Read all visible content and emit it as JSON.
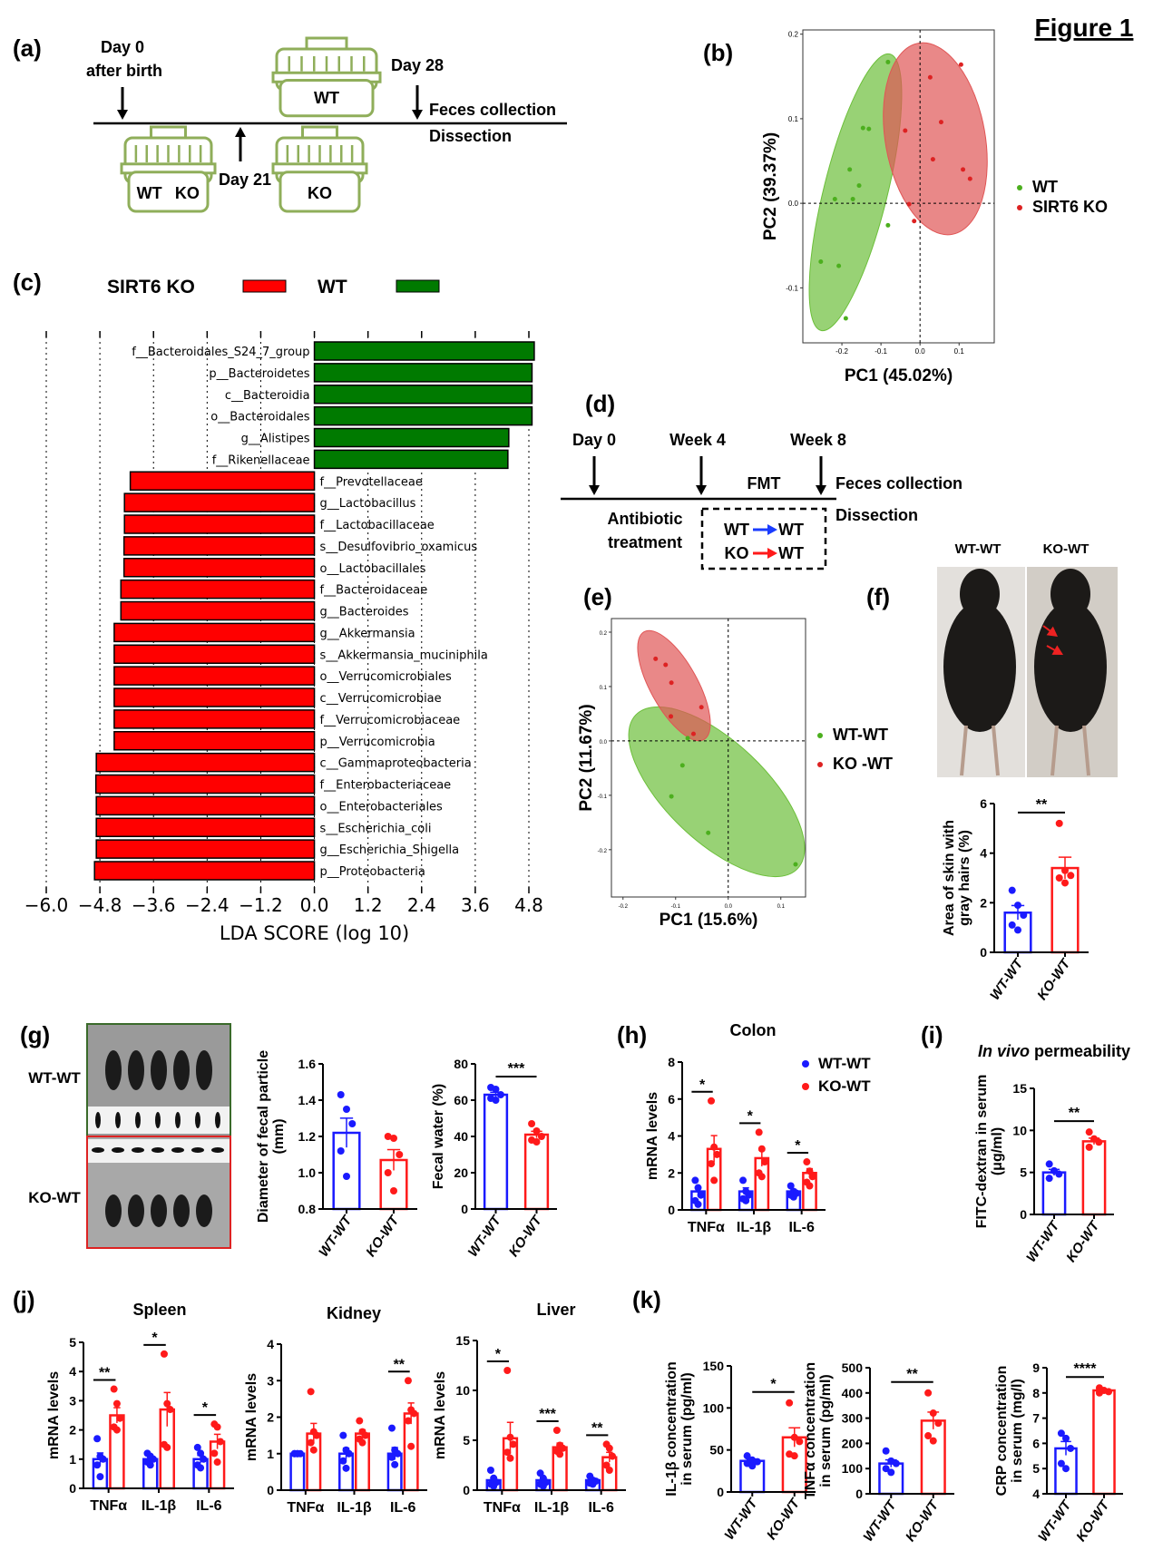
{
  "figure_title": "Figure 1",
  "panels": {
    "a": "(a)",
    "b": "(b)",
    "c": "(c)",
    "d": "(d)",
    "e": "(e)",
    "f": "(f)",
    "g": "(g)",
    "h": "(h)",
    "i": "(i)",
    "j": "(j)",
    "k": "(k)"
  },
  "colors": {
    "wt": "#1a1aff",
    "ko": "#ff1a1a",
    "green_bar": "#007a00",
    "red_bar": "#ff0000",
    "cage": "#8fae5a",
    "pca_green": "#6cbf3a",
    "pca_red": "#e05555"
  },
  "panel_a": {
    "day0": "Day 0",
    "after_birth": "after birth",
    "day21": "Day 21",
    "day28": "Day 28",
    "feces": "Feces collection",
    "dissection": "Dissection",
    "cage_top": "WT",
    "cage_left_1": "WT",
    "cage_left_2": "KO",
    "cage_right": "KO"
  },
  "panel_d": {
    "day0": "Day 0",
    "week4": "Week 4",
    "week8": "Week 8",
    "fmt": "FMT",
    "feces": "Feces collection",
    "dissection": "Dissection",
    "antibiotic": "Antibiotic",
    "treatment": "treatment",
    "transfer": [
      {
        "from": "WT",
        "to": "WT",
        "arrow_color": "#1a3cff"
      },
      {
        "from": "KO",
        "to": "WT",
        "arrow_color": "#ff1a1a"
      }
    ]
  },
  "panel_f": {
    "photo_labels": [
      "WT-WT",
      "KO-WT"
    ]
  },
  "panel_g": {
    "photo_labels": [
      "WT-WT",
      "KO-WT"
    ]
  },
  "lda_legend": {
    "ko": "SIRT6 KO",
    "wt": "WT"
  },
  "chart_data": [
    {
      "id": "b",
      "type": "scatter",
      "xlabel": "PC1 (45.02%)",
      "ylabel": "PC2 (39.37%)",
      "xlim": [
        -0.3,
        0.19
      ],
      "ylim": [
        -0.165,
        0.205
      ],
      "xticks": [
        "-0.2",
        "-0.1",
        "0.0",
        "0.1"
      ],
      "yticks": [
        "-0.1",
        "0.0",
        "0.1",
        "0.2"
      ],
      "legend": "right",
      "ellipses": true,
      "series": [
        {
          "name": "WT",
          "color": "#6cbf3a",
          "points": [
            [
              -0.082,
              0.167
            ],
            [
              -0.146,
              0.089
            ],
            [
              -0.131,
              0.088
            ],
            [
              -0.18,
              0.04
            ],
            [
              -0.156,
              0.021
            ],
            [
              -0.218,
              0.005
            ],
            [
              -0.172,
              0.005
            ],
            [
              -0.254,
              -0.069
            ],
            [
              -0.208,
              -0.074
            ],
            [
              -0.19,
              -0.136
            ],
            [
              -0.082,
              -0.026
            ]
          ]
        },
        {
          "name": "SIRT6 KO",
          "color": "#e05555",
          "points": [
            [
              0.026,
              0.149
            ],
            [
              0.105,
              0.164
            ],
            [
              -0.038,
              0.086
            ],
            [
              0.054,
              0.096
            ],
            [
              0.11,
              0.04
            ],
            [
              0.128,
              0.029
            ],
            [
              0.033,
              0.052
            ],
            [
              -0.028,
              -0.001
            ],
            [
              -0.015,
              -0.021
            ]
          ]
        }
      ]
    },
    {
      "id": "c",
      "type": "bar",
      "orientation": "horizontal",
      "xlabel": "LDA SCORE (log 10)",
      "xlim": [
        -6.0,
        4.8
      ],
      "xticks": [
        "−6.0",
        "−4.8",
        "−3.6",
        "−2.4",
        "−1.2",
        "0.0",
        "1.2",
        "2.4",
        "3.6",
        "4.8"
      ],
      "grid": true,
      "categories": [
        "f__Bacteroidales_S24_7_group",
        "p__Bacteroidetes",
        "c__Bacteroidia",
        "o__Bacteroidales",
        "g__Alistipes",
        "f__Rikenellaceae",
        "f__Prevotellaceae",
        "g__Lactobacillus",
        "f__Lactobacillaceae",
        "s__Desulfovibrio_oxamicus",
        "o__Lactobacillales",
        "f__Bacteroidaceae",
        "g__Bacteroides",
        "g__Akkermansia",
        "s__Akkermansia_muciniphila",
        "o__Verrucomicrobiales",
        "c__Verrucomicrobiae",
        "f__Verrucomicrobiaceae",
        "p__Verrucomicrobia",
        "c__Gammaproteobacteria",
        "f__Enterobacteriaceae",
        "o__Enterobacteriales",
        "s__Escherichia_coli",
        "g__Escherichia_Shigella",
        "p__Proteobacteria"
      ],
      "values": [
        4.92,
        4.87,
        4.87,
        4.87,
        4.35,
        4.33,
        -4.12,
        -4.25,
        -4.25,
        -4.26,
        -4.26,
        -4.33,
        -4.33,
        -4.48,
        -4.48,
        -4.48,
        -4.48,
        -4.48,
        -4.48,
        -4.88,
        -4.89,
        -4.88,
        -4.88,
        -4.88,
        -4.92
      ]
    },
    {
      "id": "e",
      "type": "scatter",
      "xlabel": "PC1 (15.6%)",
      "ylabel": "PC2 (11.67%)",
      "xlim": [
        -0.222,
        0.147
      ],
      "ylim": [
        -0.287,
        0.225
      ],
      "xticks": [
        "-0.2",
        "-0.1",
        "0.0",
        "0.1"
      ],
      "yticks": [
        "-0.2",
        "-0.1",
        "0.0",
        "0.1",
        "0.2"
      ],
      "legend": "right",
      "ellipses": true,
      "series": [
        {
          "name": "WT-WT",
          "color": "#6cbf3a",
          "points": [
            [
              -0.087,
              -0.045
            ],
            [
              -0.108,
              -0.102
            ],
            [
              -0.038,
              -0.169
            ],
            [
              0.128,
              -0.227
            ],
            [
              -0.077,
              0.005
            ]
          ]
        },
        {
          "name": "KO -WT",
          "color": "#e05555",
          "points": [
            [
              -0.138,
              0.151
            ],
            [
              -0.119,
              0.14
            ],
            [
              -0.108,
              0.107
            ],
            [
              -0.051,
              0.062
            ],
            [
              -0.109,
              0.045
            ],
            [
              -0.066,
              0.013
            ]
          ]
        }
      ]
    },
    {
      "id": "f",
      "type": "bar",
      "ylabel": [
        "Area of skin with",
        "gray hairs (%)"
      ],
      "ylim": [
        0,
        6
      ],
      "yticks": [
        "0",
        "2",
        "4",
        "6"
      ],
      "categories": [
        "WT-WT",
        "KO-WT"
      ],
      "colors": [
        "#1a1aff",
        "#ff1a1a"
      ],
      "series": [
        {
          "values": [
            1.6,
            3.4
          ],
          "points": [
            [
              2.5,
              1.9,
              1.5,
              1.1,
              0.9
            ],
            [
              5.2,
              3.3,
              3.1,
              3.0,
              2.8
            ]
          ]
        }
      ],
      "significance": [
        "**"
      ]
    },
    {
      "id": "g1",
      "type": "bar",
      "ylabel": [
        "Diameter of fecal particle",
        "(mm)"
      ],
      "ylim": [
        0.8,
        1.6
      ],
      "yticks": [
        "0.8",
        "1.0",
        "1.2",
        "1.4",
        "1.6"
      ],
      "categories": [
        "WT-WT",
        "KO-WT"
      ],
      "colors": [
        "#1a1aff",
        "#ff1a1a"
      ],
      "series": [
        {
          "values": [
            1.22,
            1.07
          ],
          "points": [
            [
              1.43,
              1.35,
              1.27,
              1.12,
              0.98
            ],
            [
              1.2,
              1.19,
              1.1,
              1.0,
              0.9
            ]
          ]
        }
      ],
      "significance": [
        ""
      ]
    },
    {
      "id": "g2",
      "type": "bar",
      "ylabel": [
        "Fecal water (%)"
      ],
      "ylim": [
        0,
        80
      ],
      "yticks": [
        "0",
        "20",
        "40",
        "60",
        "80"
      ],
      "categories": [
        "WT-WT",
        "KO-WT"
      ],
      "colors": [
        "#1a1aff",
        "#ff1a1a"
      ],
      "series": [
        {
          "values": [
            63,
            41
          ],
          "points": [
            [
              67,
              66,
              63,
              61,
              60
            ],
            [
              47,
              43,
              40,
              38,
              37
            ]
          ]
        }
      ],
      "significance": [
        "***"
      ]
    },
    {
      "id": "h",
      "type": "bar",
      "title": "Colon",
      "ylabel": [
        "mRNA levels"
      ],
      "ylim": [
        0,
        8
      ],
      "yticks": [
        "0",
        "2",
        "4",
        "6",
        "8"
      ],
      "categories": [
        "TNFα",
        "IL-1β",
        "IL-6"
      ],
      "legend": "top-right",
      "series": [
        {
          "name": "WT-WT",
          "color": "#1a1aff",
          "values": [
            1.0,
            1.0,
            1.0
          ],
          "points": [
            [
              1.6,
              1.2,
              0.8,
              0.5,
              0.3
            ],
            [
              1.6,
              1.0,
              0.8,
              0.6,
              0.5
            ],
            [
              1.3,
              1.0,
              0.9,
              0.8,
              0.7
            ]
          ]
        },
        {
          "name": "KO-WT",
          "color": "#ff1a1a",
          "values": [
            3.3,
            2.8,
            2.0
          ],
          "points": [
            [
              5.9,
              3.4,
              3.0,
              2.5,
              1.6
            ],
            [
              4.2,
              3.3,
              2.6,
              2.0,
              1.8
            ],
            [
              2.6,
              2.1,
              1.8,
              1.5,
              1.3
            ]
          ]
        }
      ],
      "significance": [
        "*",
        "*",
        "*"
      ]
    },
    {
      "id": "i",
      "type": "bar",
      "title_italic": "In vivo",
      "title": " permeability",
      "ylabel": [
        "FITC-dextran in serum",
        "(μg/ml)"
      ],
      "ylim": [
        0,
        15
      ],
      "yticks": [
        "0",
        "5",
        "10",
        "15"
      ],
      "categories": [
        "WT-WT",
        "KO-WT"
      ],
      "colors": [
        "#1a1aff",
        "#ff1a1a"
      ],
      "series": [
        {
          "values": [
            5.0,
            8.7
          ],
          "points": [
            [
              6.0,
              5.2,
              4.8,
              4.3
            ],
            [
              9.8,
              9.0,
              8.6,
              8.0
            ]
          ]
        }
      ],
      "significance": [
        "**"
      ]
    },
    {
      "id": "j1",
      "type": "bar",
      "title": "Spleen",
      "ylabel": [
        "mRNA levels"
      ],
      "ylim": [
        0,
        5
      ],
      "yticks": [
        "0",
        "1",
        "2",
        "3",
        "4",
        "5"
      ],
      "categories": [
        "TNFα",
        "IL-1β",
        "IL-6"
      ],
      "series": [
        {
          "color": "#1a1aff",
          "values": [
            1.0,
            1.0,
            1.0
          ],
          "points": [
            [
              1.7,
              1.1,
              1.0,
              0.8,
              0.4
            ],
            [
              1.2,
              1.1,
              1.0,
              0.9,
              0.8
            ],
            [
              1.4,
              1.2,
              1.0,
              0.8,
              0.7
            ]
          ]
        },
        {
          "color": "#ff1a1a",
          "values": [
            2.5,
            2.7,
            1.6
          ],
          "points": [
            [
              3.4,
              2.9,
              2.4,
              2.1,
              2.0
            ],
            [
              4.6,
              2.9,
              2.7,
              1.5,
              1.4
            ],
            [
              2.2,
              2.1,
              1.6,
              1.2,
              0.9
            ]
          ]
        }
      ],
      "significance": [
        "**",
        "*",
        "*"
      ]
    },
    {
      "id": "j2",
      "type": "bar",
      "title": "Kidney",
      "ylabel": [
        "mRNA levels"
      ],
      "ylim": [
        0,
        4
      ],
      "yticks": [
        "0",
        "1",
        "2",
        "3",
        "4"
      ],
      "categories": [
        "TNFα",
        "IL-1β",
        "IL-6"
      ],
      "series": [
        {
          "color": "#1a1aff",
          "values": [
            1.0,
            1.0,
            1.0
          ],
          "points": [
            [
              1.0,
              1.0,
              1.0,
              1.0,
              1.0
            ],
            [
              1.5,
              1.1,
              1.0,
              0.8,
              0.6
            ],
            [
              1.7,
              1.1,
              1.0,
              0.9,
              0.7
            ]
          ]
        },
        {
          "color": "#ff1a1a",
          "values": [
            1.55,
            1.55,
            2.1
          ],
          "points": [
            [
              2.7,
              1.6,
              1.5,
              1.3,
              1.1
            ],
            [
              1.9,
              1.6,
              1.5,
              1.4,
              1.3
            ],
            [
              3.0,
              2.2,
              2.1,
              1.9,
              1.2
            ]
          ]
        }
      ],
      "significance": [
        "",
        "",
        "**"
      ]
    },
    {
      "id": "j3",
      "type": "bar",
      "title": "Liver",
      "ylabel": [
        "mRNA levels"
      ],
      "ylim": [
        0,
        15
      ],
      "yticks": [
        "0",
        "5",
        "10",
        "15"
      ],
      "categories": [
        "TNFα",
        "IL-1β",
        "IL-6"
      ],
      "series": [
        {
          "color": "#1a1aff",
          "values": [
            1.0,
            1.0,
            1.0
          ],
          "points": [
            [
              2.0,
              1.2,
              0.8,
              0.6,
              0.4
            ],
            [
              1.7,
              1.2,
              0.8,
              0.6,
              0.4
            ],
            [
              1.4,
              1.0,
              0.9,
              0.7,
              0.6
            ]
          ]
        },
        {
          "color": "#ff1a1a",
          "values": [
            5.2,
            4.3,
            3.3
          ],
          "points": [
            [
              12,
              5.3,
              4.6,
              3.8,
              3.2
            ],
            [
              6.0,
              4.5,
              4.2,
              3.9,
              3.6
            ],
            [
              4.6,
              4.2,
              3.4,
              2.5,
              2.0
            ]
          ]
        }
      ],
      "significance": [
        "*",
        "***",
        "**"
      ]
    },
    {
      "id": "k1",
      "type": "bar",
      "ylabel": [
        "IL-1β concentration",
        "in serum (pg/ml)"
      ],
      "ylim": [
        0,
        150
      ],
      "yticks": [
        "0",
        "50",
        "100",
        "150"
      ],
      "categories": [
        "WT-WT",
        "KO-WT"
      ],
      "colors": [
        "#1a1aff",
        "#ff1a1a"
      ],
      "series": [
        {
          "values": [
            37,
            65
          ],
          "points": [
            [
              43,
              38,
              36,
              34,
              31
            ],
            [
              106,
              65,
              60,
              45,
              43
            ]
          ]
        }
      ],
      "significance": [
        "*"
      ]
    },
    {
      "id": "k2",
      "type": "bar",
      "ylabel": [
        "TNFα concentration",
        "in serum (pg/ml)"
      ],
      "ylim": [
        0,
        500
      ],
      "yticks": [
        "0",
        "100",
        "200",
        "300",
        "400",
        "500"
      ],
      "categories": [
        "WT-WT",
        "KO-WT"
      ],
      "colors": [
        "#1a1aff",
        "#ff1a1a"
      ],
      "series": [
        {
          "values": [
            120,
            290
          ],
          "points": [
            [
              170,
              130,
              120,
              100,
              85
            ],
            [
              400,
              320,
              280,
              230,
              210
            ]
          ]
        }
      ],
      "significance": [
        "**"
      ]
    },
    {
      "id": "k3",
      "type": "bar",
      "ylabel": [
        "CRP concentration",
        "in serum (mg/l)"
      ],
      "ylim": [
        4,
        9
      ],
      "yticks": [
        "4",
        "5",
        "6",
        "7",
        "8",
        "9"
      ],
      "categories": [
        "WT-WT",
        "KO-WT"
      ],
      "colors": [
        "#1a1aff",
        "#ff1a1a"
      ],
      "series": [
        {
          "values": [
            5.8,
            8.1
          ],
          "points": [
            [
              6.4,
              6.2,
              5.8,
              5.2,
              5.0
            ],
            [
              8.2,
              8.1,
              8.05,
              8.0
            ]
          ]
        }
      ],
      "significance": [
        "****"
      ]
    }
  ]
}
